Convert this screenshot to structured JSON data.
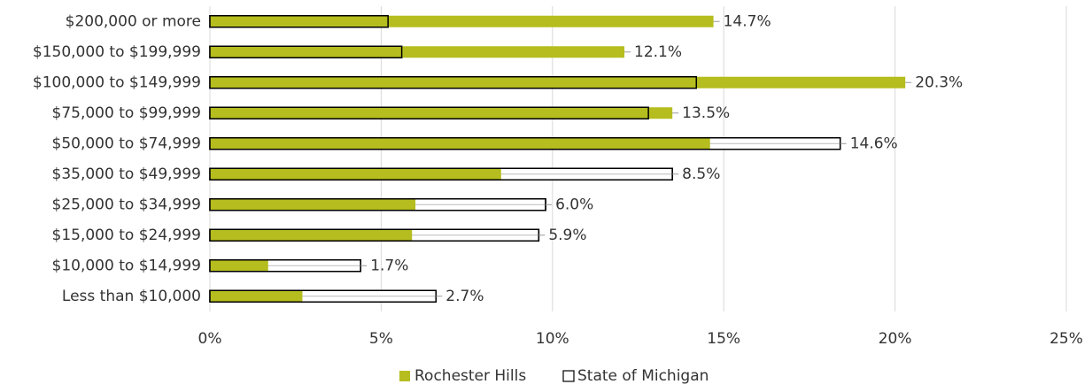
{
  "chart_data": {
    "type": "bar",
    "orientation": "horizontal",
    "categories": [
      "$200,000 or more",
      "$150,000 to $199,999",
      "$100,000 to $149,999",
      "$75,000 to $99,999",
      "$50,000 to $74,999",
      "$35,000 to $49,999",
      "$25,000 to $34,999",
      "$15,000 to $24,999",
      "$10,000 to $14,999",
      "Less than $10,000"
    ],
    "series": [
      {
        "name": "Rochester Hills",
        "color": "#b5bd1f",
        "values": [
          14.7,
          12.1,
          20.3,
          13.5,
          14.6,
          8.5,
          6.0,
          5.9,
          1.7,
          2.7
        ],
        "value_labels": [
          "14.7%",
          "12.1%",
          "20.3%",
          "13.5%",
          "14.6%",
          "8.5%",
          "6.0%",
          "5.9%",
          "1.7%",
          "2.7%"
        ]
      },
      {
        "name": "State of Michigan",
        "color": "#ffffff",
        "values": [
          5.2,
          5.6,
          14.2,
          12.8,
          18.4,
          13.5,
          9.8,
          9.6,
          4.4,
          6.6
        ]
      }
    ],
    "xlim": [
      0,
      25
    ],
    "xticks": [
      {
        "value": 0,
        "label": "0%"
      },
      {
        "value": 5,
        "label": "5%"
      },
      {
        "value": 10,
        "label": "10%"
      },
      {
        "value": 15,
        "label": "15%"
      },
      {
        "value": 20,
        "label": "20%"
      },
      {
        "value": 25,
        "label": "25%"
      }
    ],
    "grid": true,
    "legend": "bottom"
  }
}
